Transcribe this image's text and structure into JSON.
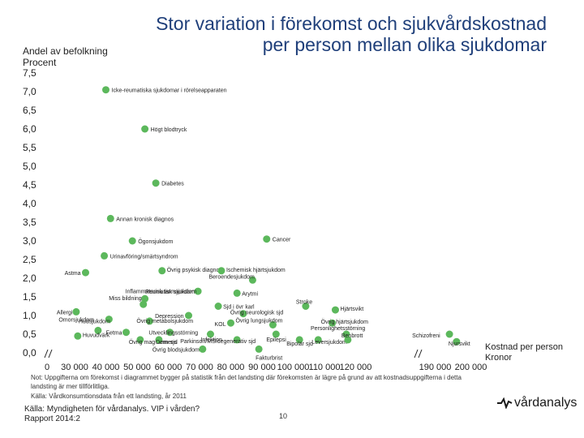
{
  "title_line1": "Stor variation i förekomst och sjukvårdskostnad",
  "title_line2": "per person mellan olika sjukdomar",
  "y_axis_label_line1": "Andel av befolkning",
  "y_axis_label_line2": "Procent",
  "x_axis_label_line1": "Kostnad per person",
  "x_axis_label_line2": "Kronor",
  "notes": {
    "line1": "Not: Uppgifterna om förekomst i diagrammet bygger på statistik från det landsting där förekomsten är lägre på grund av att kostnadsuppgifterna i detta",
    "line2": "landsting är mer tillförlitliga.",
    "line3": "Källa: Vårdkonsumtionsdata från ett landsting, år 2011"
  },
  "source": {
    "line1": "Källa: Myndigheten för vårdanalys. VIP i vården?",
    "line2": "Rapport 2014:2"
  },
  "page_number": "10",
  "logo_text": "vårdanalys",
  "colors": {
    "title": "#1f3f7a",
    "marker": "#5cb85c",
    "axis": "#222222"
  },
  "chart_data": {
    "type": "scatter",
    "y_ticks": [
      "0,0",
      "0,5",
      "1,0",
      "1,5",
      "2,0",
      "2,5",
      "3,0",
      "3,5",
      "4,0",
      "4,5",
      "5,0",
      "5,5",
      "6,0",
      "6,5",
      "7,0",
      "7,5"
    ],
    "ylim": [
      0,
      7.5
    ],
    "x_ticks": [
      "0",
      "30 000",
      "40 000",
      "50 000",
      "60 000",
      "70 000",
      "80 000",
      "90 000",
      "100 000",
      "110 000",
      "120 000",
      "190 000",
      "200 000"
    ],
    "x_tick_values": [
      0,
      30000,
      40000,
      50000,
      60000,
      70000,
      80000,
      90000,
      100000,
      110000,
      120000,
      190000,
      200000
    ],
    "x_axis_breaks": [
      "0–30 000",
      "120 000–190 000"
    ],
    "points": [
      {
        "label": "Icke-reumatiska sjukdomar i rörelseapparaten",
        "x": 40000,
        "y": 7.05
      },
      {
        "label": "Högt blodtryck",
        "x": 52500,
        "y": 6.0
      },
      {
        "label": "Diabetes",
        "x": 56000,
        "y": 4.55
      },
      {
        "label": "Annan kronisk diagnos",
        "x": 41500,
        "y": 3.6
      },
      {
        "label": "Ögonsjukdom",
        "x": 48500,
        "y": 3.0
      },
      {
        "label": "Cancer",
        "x": 91500,
        "y": 3.05
      },
      {
        "label": "Urinavföring/smärtsyndrom",
        "x": 39500,
        "y": 2.6
      },
      {
        "label": "Astma",
        "x": 33500,
        "y": 2.15
      },
      {
        "label": "Övrig psykisk diagnos",
        "x": 58000,
        "y": 2.2
      },
      {
        "label": "Ischemisk hjärtsjukdom",
        "x": 77000,
        "y": 2.2
      },
      {
        "label": "Beroendesjukdom",
        "x": 87000,
        "y": 1.95
      },
      {
        "label": "Reumatisk sjukdom",
        "x": 69500,
        "y": 1.65
      },
      {
        "label": "Arytmi",
        "x": 82000,
        "y": 1.6
      },
      {
        "label": "Inflammatorisk tarmsjukdom",
        "x": 52500,
        "y": 1.45
      },
      {
        "label": "Allergi",
        "x": 30500,
        "y": 1.1
      },
      {
        "label": "Miss bildning",
        "x": 52000,
        "y": 1.3
      },
      {
        "label": "Sjd i övr karl",
        "x": 76000,
        "y": 1.25
      },
      {
        "label": "Stroke",
        "x": 104000,
        "y": 1.25
      },
      {
        "label": "Hjärtsvikt",
        "x": 113500,
        "y": 1.15
      },
      {
        "label": "Övrig neurologisk sjd",
        "x": 84000,
        "y": 1.05
      },
      {
        "label": "Omorsjukdom",
        "x": 41000,
        "y": 0.9
      },
      {
        "label": "Övrig metabolsjukdom",
        "x": 54000,
        "y": 0.85
      },
      {
        "label": "Depression",
        "x": 66500,
        "y": 1.0
      },
      {
        "label": "Övrig hjärtsjukdom",
        "x": 112500,
        "y": 0.8
      },
      {
        "label": "KOL",
        "x": 80000,
        "y": 0.8
      },
      {
        "label": "Övrig lungsjukdom",
        "x": 93500,
        "y": 0.75
      },
      {
        "label": "Hudsjukdom",
        "x": 37500,
        "y": 0.6
      },
      {
        "label": "Fetma",
        "x": 46500,
        "y": 0.55
      },
      {
        "label": "Utvecklingsstörning",
        "x": 60500,
        "y": 0.55
      },
      {
        "label": "Infektion",
        "x": 73500,
        "y": 0.5
      },
      {
        "label": "Epilepsi",
        "x": 94500,
        "y": 0.5
      },
      {
        "label": "Personlighetsstörning",
        "x": 117000,
        "y": 0.5
      },
      {
        "label": "Schizofreni",
        "x": 194000,
        "y": 0.5
      },
      {
        "label": "Huvudvärk",
        "x": 31000,
        "y": 0.45
      },
      {
        "label": "Övrig mag-tarm-sjd",
        "x": 51000,
        "y": 0.35
      },
      {
        "label": "Demens",
        "x": 57000,
        "y": 0.35
      },
      {
        "label": "Parkinson/MS/degenerativ sjd",
        "x": 82000,
        "y": 0.35
      },
      {
        "label": "Bipolär sjd",
        "x": 102000,
        "y": 0.35
      },
      {
        "label": "Leversjukdom",
        "x": 108000,
        "y": 0.35
      },
      {
        "label": "Benbrott",
        "x": 117500,
        "y": 0.35
      },
      {
        "label": "Njursvikt",
        "x": 196000,
        "y": 0.3
      },
      {
        "label": "Övrig blodsjukdom",
        "x": 71000,
        "y": 0.1
      },
      {
        "label": "Fakturbrist",
        "x": 89000,
        "y": 0.1
      }
    ]
  }
}
